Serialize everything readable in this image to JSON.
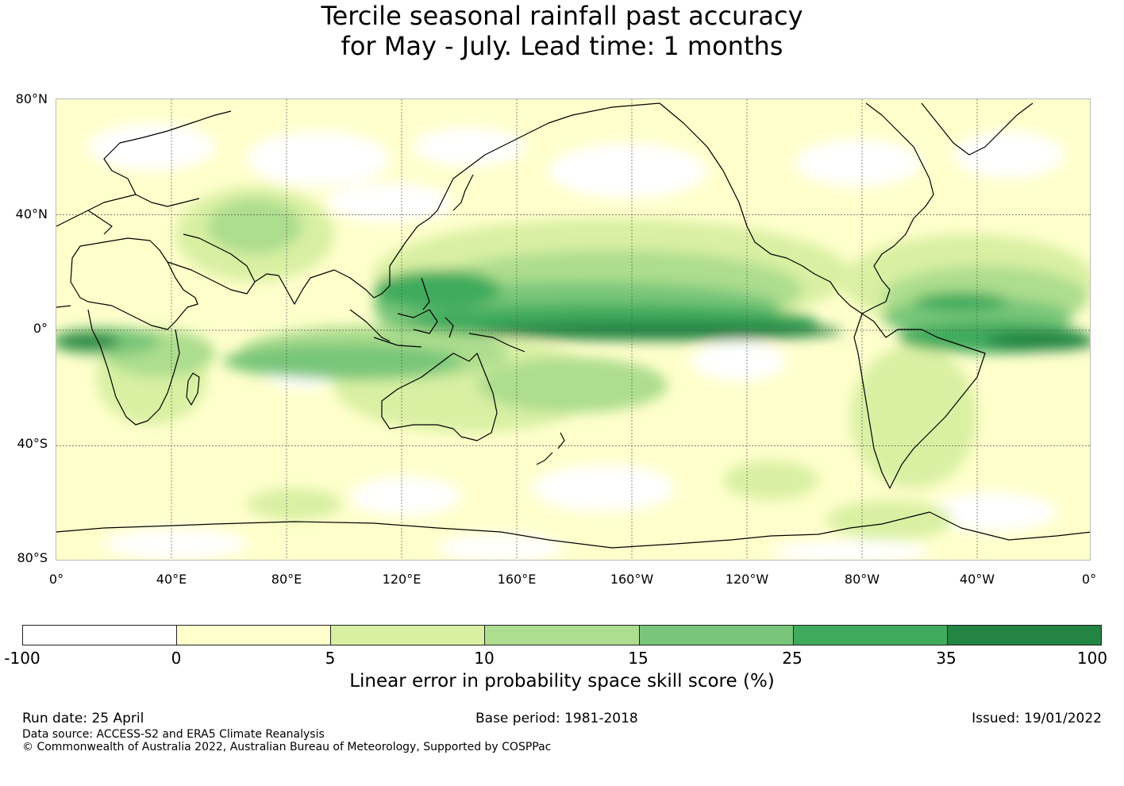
{
  "title_line1": "Tercile seasonal rainfall past accuracy",
  "title_line2": "for May - July. Lead time: 1 months",
  "map": {
    "lat_labels": [
      "80°N",
      "40°N",
      "0°",
      "40°S",
      "80°S"
    ],
    "lon_labels": [
      "0°",
      "40°E",
      "80°E",
      "120°E",
      "160°E",
      "160°W",
      "120°W",
      "80°W",
      "40°W",
      "0°"
    ],
    "lat_range": [
      -80,
      80
    ],
    "lon_range": [
      0,
      360
    ],
    "grid": true,
    "field_description": "Skill mostly 0-10% over extratropics; high skill (25-100%) in equatorial Pacific band 0-10N from 150E to 80W, equatorial Atlantic, Maritime Continent and central Africa."
  },
  "colorbar": {
    "ticks": [
      "-100",
      "0",
      "5",
      "10",
      "15",
      "25",
      "35",
      "100"
    ],
    "colors": [
      "#ffffff",
      "#ffffcc",
      "#d9f0a3",
      "#addd8e",
      "#78c679",
      "#41ab5d",
      "#238443"
    ],
    "label": "Linear error in probability space skill score (%)"
  },
  "footer": {
    "run_date": "Run date: 25 April",
    "base_period": "Base period: 1981-2018",
    "issued": "Issued: 19/01/2022",
    "data_source": "Data source: ACCESS-S2 and ERA5 Climate Reanalysis",
    "copyright": "© Commonwealth of Australia 2022, Australian Bureau of Meteorology, Supported by COSPPac"
  }
}
